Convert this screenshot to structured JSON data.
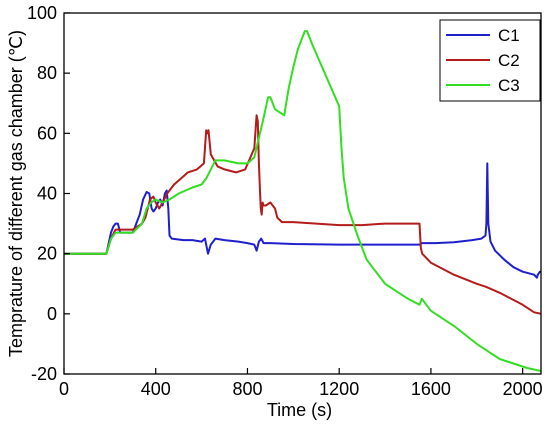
{
  "chart_data": {
    "type": "line",
    "title": "",
    "xlabel": "Time (s)",
    "ylabel": "Temprature of different gas chamber (℃)",
    "xlim": [
      0,
      2080
    ],
    "ylim": [
      -20,
      100
    ],
    "xticks": [
      0,
      400,
      800,
      1200,
      1600,
      2000
    ],
    "yticks": [
      -20,
      0,
      20,
      40,
      60,
      80,
      100
    ],
    "grid": false,
    "legend_position": "top-right",
    "series": [
      {
        "name": "C1",
        "color": "#1f1fcc",
        "x": [
          0,
          185,
          205,
          215,
          225,
          235,
          245,
          300,
          330,
          345,
          360,
          372,
          382,
          390,
          400,
          410,
          420,
          430,
          440,
          448,
          455,
          460,
          470,
          520,
          560,
          600,
          615,
          628,
          640,
          660,
          700,
          760,
          800,
          830,
          840,
          850,
          860,
          870,
          880,
          900,
          1000,
          1200,
          1400,
          1500,
          1554,
          1560,
          1620,
          1700,
          1780,
          1820,
          1838,
          1842,
          1846,
          1850,
          1860,
          1880,
          1920,
          1960,
          2000,
          2050,
          2062,
          2066,
          2075,
          2080
        ],
        "y": [
          20,
          20,
          27,
          29,
          30,
          30,
          27,
          27,
          33,
          38,
          40.5,
          40,
          35,
          34,
          35,
          37,
          38,
          36,
          40,
          41,
          35,
          26,
          25,
          24.5,
          24.5,
          24,
          25,
          20,
          23,
          25,
          24.5,
          24,
          23.5,
          23,
          21,
          24,
          25,
          23.5,
          23.5,
          23.5,
          23.2,
          23,
          23,
          23,
          23,
          23.5,
          23.5,
          23.8,
          24.5,
          25,
          26,
          30,
          50,
          30,
          24,
          21,
          18,
          15.5,
          14,
          13,
          12,
          13,
          14,
          14
        ]
      },
      {
        "name": "C2",
        "color": "#b41b1b",
        "x": [
          0,
          185,
          205,
          225,
          300,
          340,
          355,
          375,
          390,
          400,
          415,
          430,
          450,
          460,
          480,
          510,
          540,
          580,
          610,
          620,
          625,
          630,
          640,
          655,
          670,
          700,
          750,
          790,
          830,
          840,
          845,
          850,
          855,
          858,
          862,
          866,
          870,
          880,
          900,
          920,
          930,
          950,
          1000,
          1100,
          1200,
          1300,
          1400,
          1500,
          1550,
          1556,
          1562,
          1600,
          1700,
          1800,
          1840,
          1900,
          1950,
          2000,
          2050,
          2080
        ],
        "y": [
          20,
          20,
          25,
          28,
          28,
          30,
          32,
          38,
          39,
          37,
          35,
          37,
          40,
          41,
          43,
          45,
          47,
          48,
          50,
          61,
          60,
          61,
          53,
          51,
          49,
          48,
          47,
          48,
          55,
          66,
          64,
          50,
          40,
          35,
          33,
          37,
          36,
          36,
          37,
          35,
          32,
          30.5,
          30.5,
          30,
          29.5,
          29.5,
          30,
          30,
          30,
          22,
          20,
          17,
          13,
          10,
          9,
          7,
          5,
          3,
          0.5,
          0
        ]
      },
      {
        "name": "C3",
        "color": "#33dd22",
        "x": [
          0,
          185,
          205,
          225,
          300,
          340,
          360,
          380,
          400,
          430,
          460,
          500,
          560,
          600,
          620,
          640,
          660,
          700,
          760,
          800,
          830,
          870,
          890,
          900,
          920,
          960,
          980,
          1000,
          1020,
          1050,
          1060,
          1080,
          1120,
          1160,
          1200,
          1210,
          1220,
          1240,
          1280,
          1320,
          1400,
          1500,
          1550,
          1560,
          1600,
          1700,
          1800,
          1860,
          1900,
          1960,
          2020,
          2080
        ],
        "y": [
          20,
          20,
          25,
          27,
          27,
          30,
          35,
          37,
          38,
          37,
          38,
          40,
          42,
          43,
          45,
          48,
          51,
          51,
          50,
          50,
          52,
          65,
          72,
          72,
          68,
          66,
          75,
          82,
          88,
          94,
          94,
          90,
          83,
          76,
          69,
          55,
          45,
          35,
          26,
          18,
          10,
          5,
          3,
          5,
          1,
          -4,
          -10,
          -13,
          -15,
          -16.5,
          -18,
          -19
        ]
      }
    ]
  }
}
